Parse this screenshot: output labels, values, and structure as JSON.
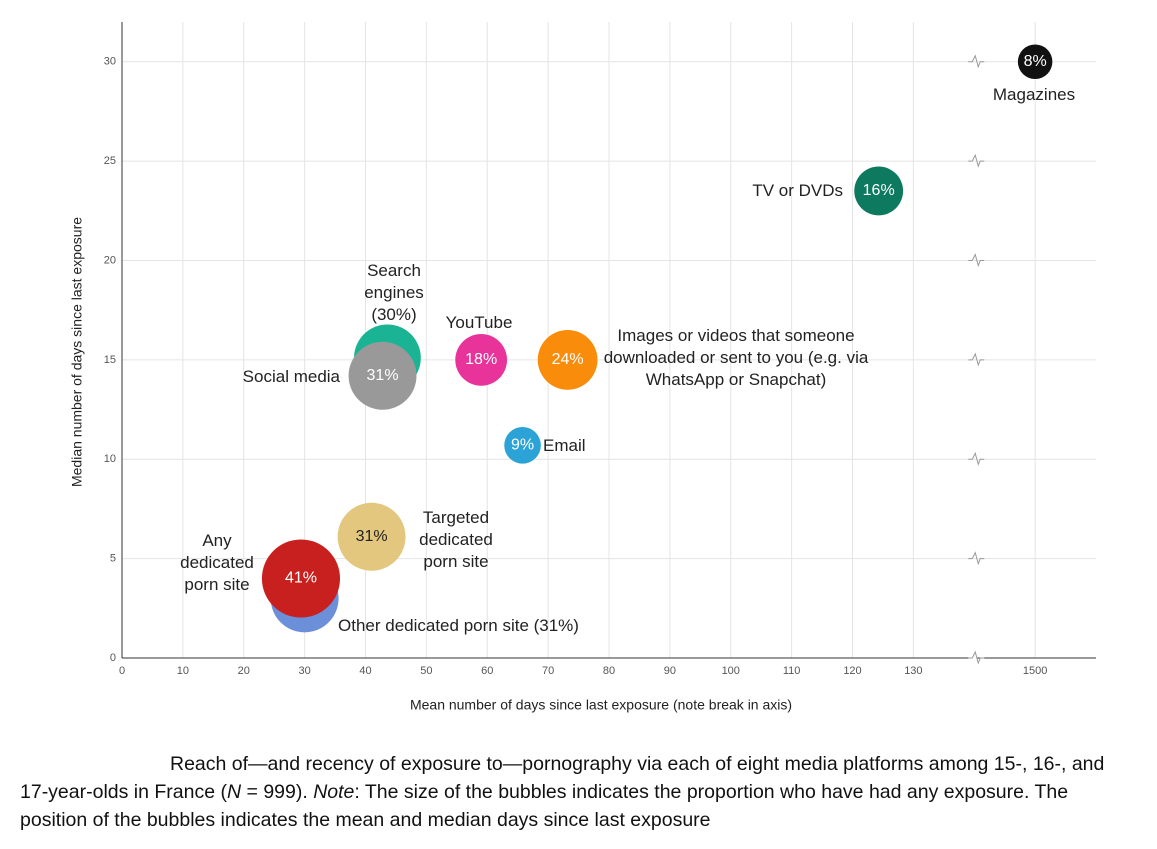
{
  "chart_data": {
    "type": "bubble",
    "x_label": "Mean number of days since last exposure (note break in axis)",
    "y_label": "Median number of days since last exposure",
    "xlim": [
      0,
      1510
    ],
    "x_break": [
      140,
      1490
    ],
    "xticks": [
      0,
      10,
      20,
      30,
      40,
      50,
      60,
      70,
      80,
      90,
      100,
      110,
      120,
      130,
      1500
    ],
    "ylim": [
      0,
      32
    ],
    "yticks": [
      0,
      5,
      10,
      15,
      20,
      25,
      30
    ],
    "grid": true,
    "points": [
      {
        "name": "Search engines (30%)",
        "color": "#1ab394",
        "x": 43.6,
        "y": 15.1,
        "size": 30,
        "value_label": null
      },
      {
        "name": "Social media",
        "color": "#999999",
        "x": 42.8,
        "y": 14.2,
        "size": 31,
        "value_label": "31%"
      },
      {
        "name": "YouTube",
        "color": "#e8339a",
        "x": 59,
        "y": 15,
        "size": 18,
        "value_label": "18%"
      },
      {
        "name": "Images or videos that someone downloaded or sent to you (e.g. via WhatsApp or Snapchat)",
        "color": "#f98c0a",
        "x": 73.2,
        "y": 15,
        "size": 24,
        "value_label": "24%"
      },
      {
        "name": "Email",
        "color": "#2ba3d6",
        "x": 65.8,
        "y": 10.7,
        "size": 9,
        "value_label": "9%"
      },
      {
        "name": "Magazines",
        "color": "#111111",
        "x": 1500,
        "y": 30,
        "size": 8,
        "value_label": "8%"
      },
      {
        "name": "TV or DVDs",
        "color": "#0d7a5f",
        "x": 124.3,
        "y": 23.5,
        "size": 16,
        "value_label": "16%"
      },
      {
        "name": "Targeted dedicated porn site",
        "color": "#e3c77f",
        "x": 41,
        "y": 6.1,
        "size": 31,
        "value_label": "31%"
      },
      {
        "name": "Other dedicated porn site (31%)",
        "color": "#6b8fd8",
        "x": 30,
        "y": 3,
        "size": 31,
        "value_label": null
      },
      {
        "name": "Any dedicated porn site",
        "color": "#c8201f",
        "x": 29.4,
        "y": 4,
        "size": 41,
        "value_label": "41%"
      }
    ]
  },
  "caption": [
    "Reach of—and recency of exposure to—pornography via each of eight media platforms among 15-, 16-, and 17-year-olds in France (",
    "N",
    " = 999). ",
    "Note",
    ": The size of the bubbles indicates the proportion who have had any exposure. The position of the bubbles indicates the mean and median days since last exposure"
  ]
}
